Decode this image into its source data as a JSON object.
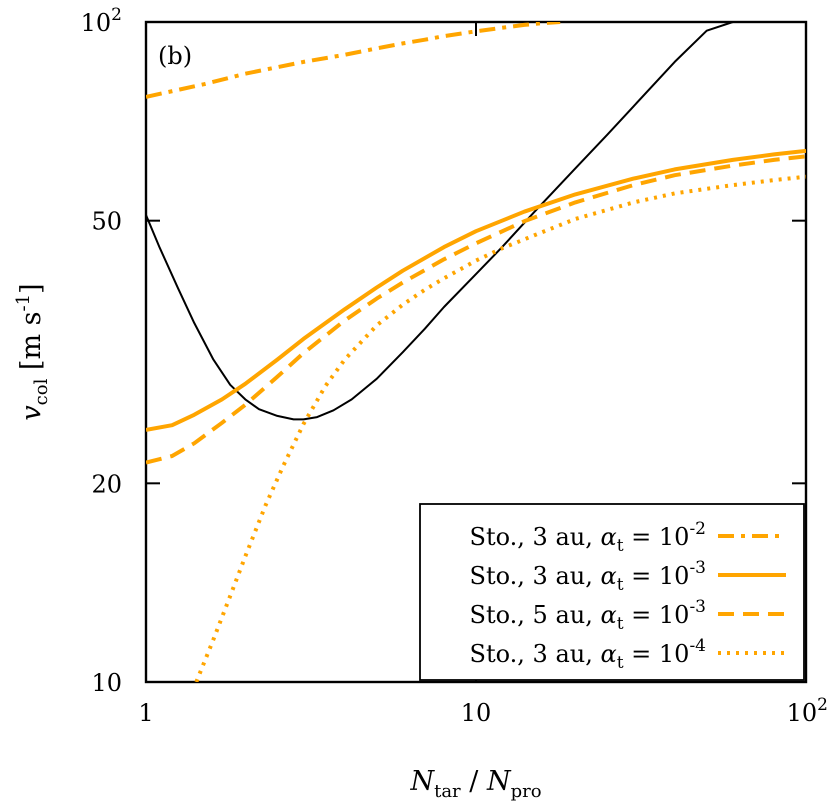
{
  "chart_data": {
    "type": "line",
    "panel_label": "(b)",
    "xscale": "log",
    "yscale": "log",
    "xlim": [
      1,
      100
    ],
    "ylim": [
      10,
      100
    ],
    "grid": false,
    "legend_position": "bottom-right",
    "xlabel": {
      "main": "N",
      "sub1": "tar",
      "sep": " / ",
      "main2": "N",
      "sub2": "pro"
    },
    "ylabel": {
      "main": "v",
      "sub": "col",
      "unit": " [m s",
      "exp": "-1",
      "close": "]"
    },
    "x_ticks": [
      {
        "value": 1,
        "base": "1",
        "exp": ""
      },
      {
        "value": 10,
        "base": "10",
        "exp": ""
      },
      {
        "value": 100,
        "base": "10",
        "exp": "2"
      }
    ],
    "y_ticks": [
      {
        "value": 10,
        "base": "10",
        "exp": ""
      },
      {
        "value": 20,
        "base": "20",
        "exp": ""
      },
      {
        "value": 50,
        "base": "50",
        "exp": ""
      },
      {
        "value": 100,
        "base": "10",
        "exp": "2"
      }
    ],
    "series": [
      {
        "key": "threshold",
        "color": "#000000",
        "dash": "solid",
        "in_legend": false,
        "x": [
          1,
          1.1,
          1.25,
          1.4,
          1.6,
          1.8,
          2.0,
          2.2,
          2.5,
          2.8,
          3.0,
          3.3,
          3.7,
          4.2,
          5,
          6,
          7,
          8,
          10,
          12,
          15,
          20,
          25,
          30,
          40,
          50,
          60,
          70,
          75
        ],
        "y": [
          51,
          45.5,
          39.5,
          35,
          30.8,
          28.2,
          26.8,
          25.9,
          25.3,
          25.0,
          25.0,
          25.2,
          25.8,
          26.8,
          28.8,
          31.6,
          34.3,
          37.0,
          41.5,
          45.6,
          51.5,
          60,
          67.5,
          74.5,
          87,
          97,
          100,
          100,
          100
        ]
      },
      {
        "key": "s1",
        "legend": {
          "text": "Sto., 3 au, ",
          "symbol": "α",
          "sub": "t",
          "eq": " = 10",
          "exp": "-2"
        },
        "color": "#FFA500",
        "dash": "dashdot",
        "in_legend": true,
        "x": [
          1,
          1.5,
          2,
          3,
          4,
          5,
          6,
          7,
          8,
          10,
          12,
          14,
          16,
          18
        ],
        "y": [
          77,
          80.5,
          83.5,
          87.0,
          89.2,
          91.2,
          92.8,
          94.0,
          95.2,
          96.8,
          98.0,
          99.0,
          99.6,
          100
        ]
      },
      {
        "key": "s2",
        "legend": {
          "text": "Sto., 3 au, ",
          "symbol": "α",
          "sub": "t",
          "eq": " = 10",
          "exp": "-3"
        },
        "color": "#FFA500",
        "dash": "solid",
        "in_legend": true,
        "x": [
          1,
          1.2,
          1.4,
          1.7,
          2,
          2.5,
          3,
          4,
          5,
          6,
          8,
          10,
          14,
          20,
          30,
          40,
          60,
          80,
          100
        ],
        "y": [
          24.1,
          24.5,
          25.4,
          26.8,
          28.3,
          30.8,
          33.1,
          36.7,
          39.6,
          42.0,
          45.6,
          48.2,
          51.6,
          54.8,
          57.9,
          59.8,
          61.8,
          63.0,
          63.8
        ]
      },
      {
        "key": "s3",
        "legend": {
          "text": "Sto., 5 au, ",
          "symbol": "α",
          "sub": "t",
          "eq": " = 10",
          "exp": "-3"
        },
        "color": "#FFA500",
        "dash": "dash",
        "in_legend": true,
        "x": [
          1,
          1.2,
          1.4,
          1.7,
          2,
          2.5,
          3,
          4,
          5,
          6,
          8,
          10,
          14,
          20,
          30,
          40,
          60,
          80,
          100
        ],
        "y": [
          21.5,
          22.0,
          23.0,
          24.7,
          26.3,
          29.0,
          31.5,
          35.3,
          38.1,
          40.3,
          43.7,
          46.2,
          49.9,
          53.3,
          56.6,
          58.6,
          60.6,
          61.8,
          62.6
        ]
      },
      {
        "key": "s4",
        "legend": {
          "text": "Sto., 3 au, ",
          "symbol": "α",
          "sub": "t",
          "eq": " = 10",
          "exp": "-4"
        },
        "color": "#FFA500",
        "dash": "dot",
        "in_legend": true,
        "x": [
          1.42,
          1.6,
          1.8,
          2,
          2.3,
          2.6,
          3,
          3.5,
          4,
          5,
          6,
          7,
          8,
          10,
          12,
          15,
          20,
          30,
          40,
          60,
          80,
          100
        ],
        "y": [
          10,
          11.6,
          13.5,
          15.5,
          18.5,
          21.2,
          24.6,
          28.1,
          30.8,
          34.7,
          37.3,
          39.3,
          40.9,
          43.5,
          45.4,
          47.5,
          50.3,
          53.3,
          55.0,
          56.6,
          57.6,
          58.3
        ]
      }
    ]
  }
}
